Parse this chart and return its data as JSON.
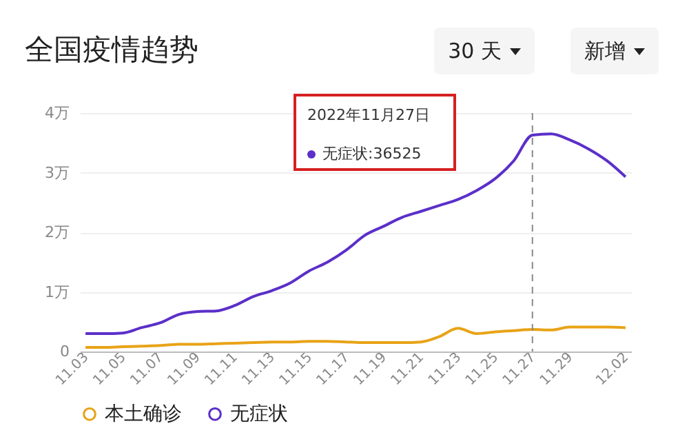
{
  "chart_data": {
    "type": "line",
    "title": "全国疫情趋势",
    "categories": [
      "11.03",
      null,
      "11.05",
      null,
      "11.07",
      null,
      "11.09",
      null,
      "11.11",
      null,
      "11.13",
      null,
      "11.15",
      null,
      "11.17",
      null,
      "11.19",
      null,
      "11.21",
      null,
      "11.23",
      null,
      "11.25",
      null,
      "11.27",
      null,
      "11.29",
      null,
      null,
      "12.02"
    ],
    "series": [
      {
        "name": "本土确诊",
        "color": "#e8a317",
        "values": [
          0.07,
          0.07,
          0.08,
          0.09,
          0.1,
          0.12,
          0.12,
          0.13,
          0.14,
          0.15,
          0.16,
          0.16,
          0.17,
          0.17,
          0.16,
          0.15,
          0.15,
          0.15,
          0.16,
          0.25,
          0.39,
          0.3,
          0.33,
          0.35,
          0.37,
          0.36,
          0.41,
          0.41,
          0.41,
          0.4
        ]
      },
      {
        "name": "无症状",
        "color": "#5b2fc9",
        "values": [
          0.3,
          0.3,
          0.31,
          0.4,
          0.48,
          0.62,
          0.67,
          0.68,
          0.77,
          0.92,
          1.02,
          1.15,
          1.35,
          1.5,
          1.7,
          1.95,
          2.1,
          2.25,
          2.35,
          2.45,
          2.55,
          2.7,
          2.9,
          3.2,
          3.63,
          3.65,
          3.55,
          3.4,
          3.2,
          2.93
        ]
      }
    ],
    "ylim": [
      0,
      4
    ],
    "yticks": [
      0,
      {
        "value": 1,
        "label": "1万"
      },
      {
        "value": 2,
        "label": "2万"
      },
      {
        "value": 3,
        "label": "3万"
      },
      {
        "value": 4,
        "label": "4万"
      }
    ],
    "grid": "y",
    "legend": "bottom",
    "marker": "none",
    "line_style": "solid",
    "ref_lines": [
      {
        "axis": "x",
        "value": "11.27",
        "label": null,
        "color": "#888888",
        "line_style": "dashed"
      }
    ],
    "annotations": [
      "30 天",
      "新增",
      "2022年11月27日",
      "无症状:36525"
    ]
  }
}
